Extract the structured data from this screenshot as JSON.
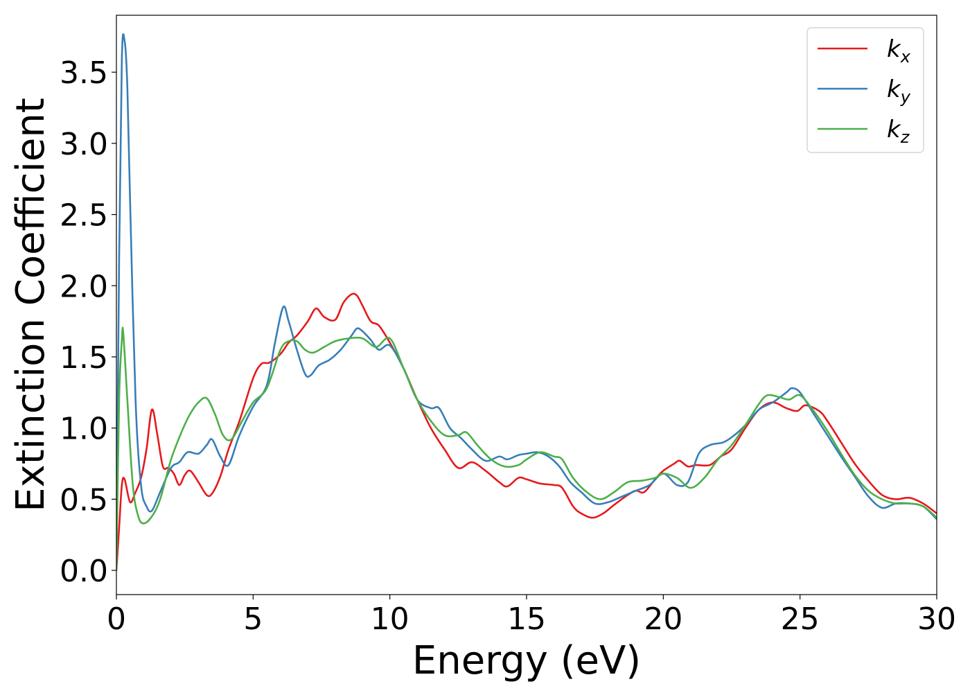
{
  "chart_data": {
    "type": "line",
    "title": "",
    "xlabel": "Energy (eV)",
    "ylabel": "Extinction Coefficient",
    "xlim": [
      0,
      30
    ],
    "ylim": [
      -0.17,
      3.9
    ],
    "xticks": [
      0,
      5,
      10,
      15,
      20,
      25,
      30
    ],
    "xtick_labels": [
      "0",
      "5",
      "10",
      "15",
      "20",
      "25",
      "30"
    ],
    "yticks": [
      0.0,
      0.5,
      1.0,
      1.5,
      2.0,
      2.5,
      3.0,
      3.5
    ],
    "ytick_labels": [
      "0.0",
      "0.5",
      "1.0",
      "1.5",
      "2.0",
      "2.5",
      "3.0",
      "3.5"
    ],
    "grid": false,
    "legend_position": "top-right",
    "series": [
      {
        "name": "kx",
        "label_main": "k",
        "label_sub": "x",
        "color": "#e41a1c",
        "x": [
          0,
          0.1,
          0.2,
          0.3,
          0.5,
          0.7,
          0.9,
          1.1,
          1.3,
          1.5,
          1.7,
          1.9,
          2.1,
          2.3,
          2.5,
          2.7,
          3.0,
          3.3,
          3.5,
          3.8,
          4.1,
          4.5,
          5.0,
          5.3,
          5.6,
          6.0,
          6.3,
          6.6,
          7.0,
          7.3,
          7.6,
          8.0,
          8.3,
          8.6,
          8.8,
          9.0,
          9.3,
          9.6,
          10.0,
          10.5,
          11.0,
          11.5,
          12.0,
          12.5,
          13.0,
          13.5,
          14.0,
          14.3,
          14.7,
          15.0,
          15.5,
          16.0,
          16.3,
          16.7,
          17.0,
          17.4,
          17.8,
          18.2,
          18.7,
          19.0,
          19.3,
          19.7,
          20.0,
          20.4,
          20.6,
          20.9,
          21.2,
          21.7,
          22.1,
          22.5,
          23.0,
          23.5,
          24.0,
          24.5,
          24.9,
          25.2,
          25.7,
          26.0,
          26.5,
          27.0,
          27.5,
          28.0,
          28.5,
          29.0,
          29.5,
          30.0
        ],
        "y": [
          0.0,
          0.3,
          0.6,
          0.64,
          0.48,
          0.55,
          0.65,
          0.85,
          1.13,
          0.95,
          0.73,
          0.72,
          0.68,
          0.6,
          0.67,
          0.7,
          0.62,
          0.53,
          0.54,
          0.66,
          0.85,
          1.05,
          1.35,
          1.45,
          1.46,
          1.52,
          1.6,
          1.65,
          1.75,
          1.84,
          1.78,
          1.76,
          1.88,
          1.94,
          1.93,
          1.86,
          1.75,
          1.72,
          1.6,
          1.42,
          1.2,
          1.0,
          0.85,
          0.72,
          0.76,
          0.7,
          0.62,
          0.59,
          0.65,
          0.64,
          0.61,
          0.6,
          0.58,
          0.45,
          0.4,
          0.37,
          0.4,
          0.46,
          0.53,
          0.56,
          0.55,
          0.64,
          0.7,
          0.75,
          0.77,
          0.73,
          0.74,
          0.74,
          0.8,
          0.85,
          1.0,
          1.13,
          1.18,
          1.14,
          1.12,
          1.16,
          1.12,
          1.05,
          0.9,
          0.75,
          0.63,
          0.53,
          0.5,
          0.51,
          0.47,
          0.4
        ]
      },
      {
        "name": "ky",
        "label_main": "k",
        "label_sub": "y",
        "color": "#377eb8",
        "x": [
          0,
          0.1,
          0.2,
          0.3,
          0.4,
          0.5,
          0.7,
          0.9,
          1.1,
          1.3,
          1.6,
          2.0,
          2.3,
          2.6,
          3.0,
          3.3,
          3.5,
          3.8,
          4.1,
          4.5,
          5.0,
          5.5,
          5.8,
          6.1,
          6.3,
          6.6,
          6.9,
          7.1,
          7.4,
          7.8,
          8.2,
          8.6,
          8.8,
          9.0,
          9.3,
          9.6,
          10.0,
          10.5,
          11.0,
          11.5,
          11.8,
          12.2,
          12.6,
          13.0,
          13.5,
          14.0,
          14.3,
          14.7,
          15.0,
          15.4,
          15.8,
          16.2,
          16.6,
          17.0,
          17.5,
          18.0,
          18.5,
          19.0,
          19.5,
          20.0,
          20.5,
          20.9,
          21.3,
          21.7,
          22.2,
          22.6,
          23.0,
          23.5,
          24.0,
          24.5,
          24.7,
          25.0,
          25.5,
          26.0,
          26.5,
          27.0,
          27.5,
          28.0,
          28.5,
          29.0,
          29.5,
          30.0
        ],
        "y": [
          0.0,
          2.2,
          3.6,
          3.72,
          3.4,
          2.6,
          1.2,
          0.6,
          0.45,
          0.42,
          0.55,
          0.72,
          0.76,
          0.83,
          0.82,
          0.88,
          0.92,
          0.8,
          0.74,
          0.95,
          1.15,
          1.3,
          1.6,
          1.85,
          1.75,
          1.55,
          1.38,
          1.37,
          1.44,
          1.48,
          1.55,
          1.65,
          1.7,
          1.68,
          1.62,
          1.55,
          1.58,
          1.42,
          1.2,
          1.14,
          1.14,
          1.0,
          0.93,
          0.85,
          0.77,
          0.8,
          0.78,
          0.81,
          0.82,
          0.83,
          0.8,
          0.73,
          0.62,
          0.55,
          0.47,
          0.48,
          0.52,
          0.56,
          0.6,
          0.68,
          0.6,
          0.62,
          0.82,
          0.88,
          0.9,
          0.95,
          1.02,
          1.13,
          1.18,
          1.25,
          1.28,
          1.25,
          1.1,
          0.95,
          0.8,
          0.66,
          0.52,
          0.44,
          0.47,
          0.47,
          0.45,
          0.36
        ]
      },
      {
        "name": "kz",
        "label_main": "k",
        "label_sub": "z",
        "color": "#4daf4a",
        "x": [
          0,
          0.1,
          0.2,
          0.25,
          0.4,
          0.6,
          0.8,
          1.0,
          1.3,
          1.6,
          2.0,
          2.4,
          2.7,
          3.0,
          3.3,
          3.6,
          3.9,
          4.2,
          4.6,
          5.0,
          5.5,
          6.0,
          6.3,
          6.6,
          6.9,
          7.2,
          7.6,
          8.0,
          8.5,
          9.0,
          9.5,
          10.0,
          10.5,
          11.0,
          11.5,
          12.0,
          12.5,
          12.8,
          13.2,
          13.7,
          14.2,
          14.7,
          15.0,
          15.5,
          16.0,
          16.3,
          16.7,
          17.2,
          17.7,
          18.2,
          18.7,
          19.2,
          19.7,
          20.0,
          20.5,
          21.0,
          21.5,
          22.0,
          22.5,
          23.0,
          23.5,
          23.8,
          24.2,
          24.6,
          25.0,
          25.5,
          26.0,
          26.5,
          27.0,
          27.5,
          28.0,
          28.5,
          29.0,
          29.5,
          30.0
        ],
        "y": [
          0.0,
          1.2,
          1.62,
          1.67,
          1.2,
          0.6,
          0.38,
          0.33,
          0.38,
          0.5,
          0.78,
          0.98,
          1.1,
          1.18,
          1.21,
          1.1,
          0.95,
          0.92,
          1.05,
          1.18,
          1.28,
          1.55,
          1.61,
          1.61,
          1.55,
          1.53,
          1.57,
          1.61,
          1.63,
          1.63,
          1.57,
          1.63,
          1.42,
          1.2,
          1.05,
          0.95,
          0.95,
          0.97,
          0.88,
          0.78,
          0.73,
          0.74,
          0.78,
          0.83,
          0.8,
          0.78,
          0.65,
          0.55,
          0.5,
          0.55,
          0.62,
          0.63,
          0.65,
          0.68,
          0.65,
          0.58,
          0.65,
          0.78,
          0.88,
          1.02,
          1.17,
          1.23,
          1.22,
          1.2,
          1.23,
          1.12,
          0.98,
          0.82,
          0.67,
          0.56,
          0.5,
          0.47,
          0.47,
          0.45,
          0.37
        ]
      }
    ]
  }
}
